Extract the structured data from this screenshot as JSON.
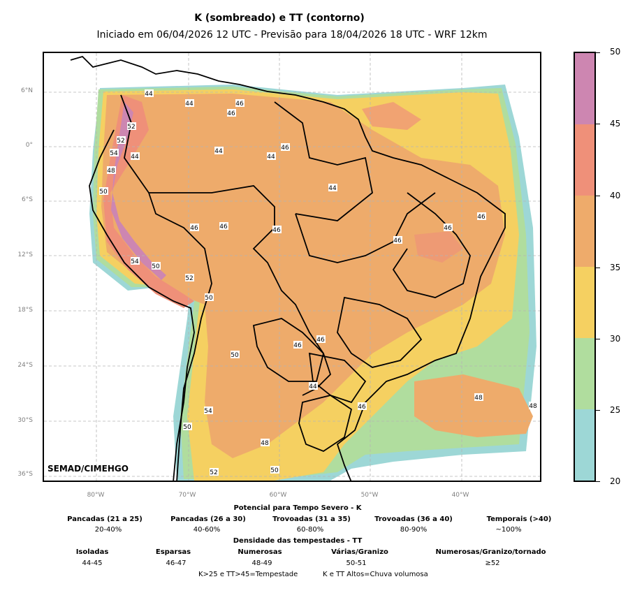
{
  "title": "K (sombreado) e TT (contorno)",
  "subtitle": "Iniciado em 06/04/2026 12 UTC - Previsão para 18/04/2026 18 UTC - WRF 12km",
  "credit": "SEMAD/CIMEHGO",
  "lat_labels": [
    "6°N",
    "0°",
    "6°S",
    "12°S",
    "18°S",
    "24°S",
    "30°S",
    "36°S"
  ],
  "lon_labels": [
    "80°W",
    "70°W",
    "60°W",
    "50°W",
    "40°W"
  ],
  "colorbar": {
    "labels": [
      "50",
      "45",
      "40",
      "35",
      "30",
      "25",
      "20"
    ],
    "colors": [
      "#cd86b1",
      "#ef9079",
      "#eeab6b",
      "#f5d061",
      "#b0dd9e",
      "#9dd7d6"
    ]
  },
  "tt_contour_labels": [
    "44",
    "46",
    "48",
    "50",
    "52",
    "54"
  ],
  "legend": {
    "heading_k": "Potencial para Tempo Severo - K",
    "k_categories": [
      {
        "title": "Pancadas (21 a 25)",
        "value": "20-40%"
      },
      {
        "title": "Pancadas (26 a 30)",
        "value": "40-60%"
      },
      {
        "title": "Trovoadas (31 a 35)",
        "value": "60-80%"
      },
      {
        "title": "Trovoadas (36 a 40)",
        "value": "80-90%"
      },
      {
        "title": "Temporais (>40)",
        "value": "~100%"
      }
    ],
    "heading_tt": "Densidade das tempestades - TT",
    "tt_categories": [
      {
        "title": "Isoladas",
        "value": "44-45"
      },
      {
        "title": "Esparsas",
        "value": "46-47"
      },
      {
        "title": "Numerosas",
        "value": "48-49"
      },
      {
        "title": "Várias/Granizo",
        "value": "50-51"
      },
      {
        "title": "Numerosas/Granizo/tornado",
        "value": "≥52"
      }
    ],
    "footer_left": "K>25 e TT>45=Tempestade",
    "footer_right": "K e TT Altos=Chuva volumosa"
  }
}
